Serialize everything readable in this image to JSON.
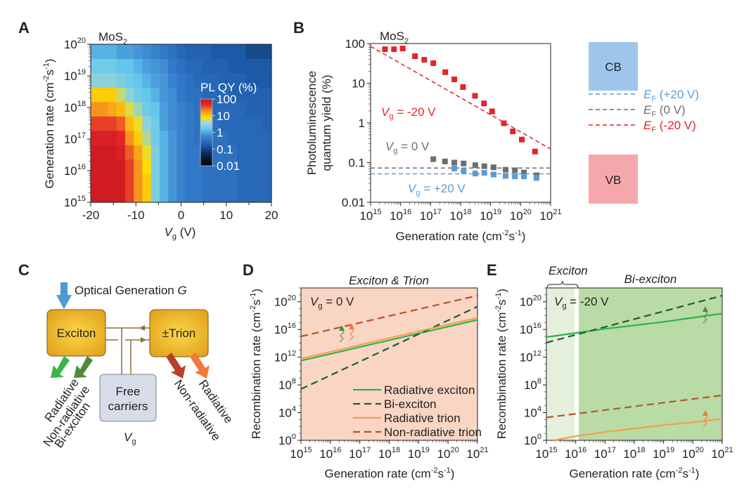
{
  "panels": {
    "A": {
      "label": "A",
      "material": "MoS",
      "material_sub": "2"
    },
    "B": {
      "label": "B",
      "material": "MoS",
      "material_sub": "2"
    },
    "C": {
      "label": "C"
    },
    "D": {
      "label": "D"
    },
    "E": {
      "label": "E"
    }
  },
  "chart_data": [
    {
      "id": "A",
      "type": "heatmap",
      "title": "MoS2",
      "xlabel": "Vg (V)",
      "ylabel": "Generation rate (cm-2s-1)",
      "x_axis": {
        "range": [
          -20,
          20
        ],
        "ticks": [
          "-20",
          "-10",
          "0",
          "10",
          "20"
        ],
        "tick_values": [
          -20,
          -10,
          0,
          10,
          20
        ]
      },
      "y_axis": {
        "scale": "log",
        "range_exp": [
          15,
          20
        ],
        "ticks_exp": [
          15,
          16,
          17,
          18,
          19,
          20
        ]
      },
      "colorbar": {
        "title": "PL QY (%)",
        "scale": "log",
        "ticks": [
          "100",
          "10",
          "1",
          "0.1",
          "0.01"
        ],
        "range_exp": [
          -2,
          2
        ]
      },
      "x": [
        -20,
        -18,
        -16,
        -14,
        -12,
        -10,
        -8,
        -6,
        -4,
        -2,
        0,
        2,
        4,
        6,
        8,
        10,
        12,
        14,
        16,
        18,
        20
      ],
      "y_exp": [
        15,
        15.5,
        16,
        16.5,
        17,
        17.5,
        18,
        18.5,
        19,
        19.5,
        20
      ],
      "log_values": [
        [
          1.9,
          1.9,
          1.9,
          1.9,
          1.6,
          1.3,
          1.0,
          0.2,
          -0.1,
          -0.3,
          -0.5,
          -0.6,
          -0.6,
          -0.7,
          -0.7,
          -0.7,
          -0.7,
          -0.8,
          -0.8,
          -0.8,
          -0.8
        ],
        [
          1.9,
          1.9,
          1.9,
          1.9,
          1.6,
          1.3,
          1.0,
          0.2,
          -0.1,
          -0.3,
          -0.5,
          -0.6,
          -0.6,
          -0.7,
          -0.7,
          -0.7,
          -0.7,
          -0.8,
          -0.8,
          -0.8,
          -0.8
        ],
        [
          1.9,
          1.9,
          1.9,
          1.9,
          1.6,
          1.3,
          0.9,
          0.2,
          -0.1,
          -0.3,
          -0.5,
          -0.6,
          -0.6,
          -0.7,
          -0.7,
          -0.7,
          -0.7,
          -0.8,
          -0.8,
          -0.8,
          -0.8
        ],
        [
          1.9,
          1.9,
          1.9,
          1.8,
          1.5,
          1.2,
          0.8,
          0.2,
          -0.1,
          -0.3,
          -0.5,
          -0.6,
          -0.6,
          -0.7,
          -0.7,
          -0.7,
          -0.7,
          -0.8,
          -0.8,
          -0.8,
          -0.8
        ],
        [
          1.8,
          1.8,
          1.8,
          1.7,
          1.3,
          1.0,
          0.5,
          0.1,
          -0.1,
          -0.3,
          -0.5,
          -0.6,
          -0.7,
          -0.7,
          -0.7,
          -0.7,
          -0.8,
          -0.8,
          -0.8,
          -0.8,
          -0.8
        ],
        [
          1.6,
          1.6,
          1.6,
          1.5,
          1.1,
          0.8,
          0.3,
          0.1,
          -0.2,
          -0.4,
          -0.5,
          -0.6,
          -0.7,
          -0.7,
          -0.7,
          -0.8,
          -0.8,
          -0.8,
          -0.8,
          -0.8,
          -0.9
        ],
        [
          1.3,
          1.3,
          1.2,
          1.1,
          0.7,
          0.4,
          0.1,
          0.0,
          -0.2,
          -0.4,
          -0.5,
          -0.6,
          -0.7,
          -0.7,
          -0.8,
          -0.8,
          -0.8,
          -0.8,
          -0.9,
          -0.9,
          -0.9
        ],
        [
          1.0,
          1.0,
          1.0,
          0.6,
          0.3,
          0.1,
          0.0,
          -0.1,
          -0.3,
          -0.4,
          -0.6,
          -0.7,
          -0.7,
          -0.8,
          -0.8,
          -0.8,
          -0.9,
          -0.9,
          -0.9,
          -0.9,
          -0.9
        ],
        [
          0.3,
          0.3,
          0.3,
          0.2,
          0.1,
          0.0,
          -0.1,
          -0.2,
          -0.3,
          -0.5,
          -0.6,
          -0.7,
          -0.8,
          -0.8,
          -0.8,
          -0.9,
          -0.9,
          -0.9,
          -1.0,
          -1.0,
          -1.0
        ],
        [
          0.1,
          0.1,
          0.1,
          0.0,
          0.0,
          -0.1,
          -0.2,
          -0.3,
          -0.4,
          -0.6,
          -0.7,
          -0.8,
          -0.8,
          -0.9,
          -0.9,
          -0.9,
          -1.0,
          -1.0,
          -1.0,
          -1.0,
          -1.0
        ],
        [
          -0.1,
          -0.1,
          -0.1,
          -0.2,
          -0.2,
          -0.3,
          -0.4,
          -0.5,
          -0.6,
          -0.7,
          -0.8,
          -0.9,
          -0.9,
          -0.9,
          -1.0,
          -1.0,
          -1.0,
          -1.0,
          -1.1,
          -1.1,
          -1.1
        ]
      ]
    },
    {
      "id": "B",
      "type": "scatter",
      "title": "MoS2",
      "xlabel": "Generation rate (cm-2s-1)",
      "ylabel_line1": "Photoluminescence",
      "ylabel_line2": "quantum yield (%)",
      "x_axis": {
        "scale": "log",
        "range_exp": [
          15,
          21
        ],
        "ticks_exp": [
          15,
          16,
          17,
          18,
          19,
          20,
          21
        ]
      },
      "y_axis": {
        "scale": "log",
        "range": [
          0.01,
          100
        ],
        "ticks": [
          "100",
          "10",
          "1",
          "0.1",
          "0.01"
        ],
        "tick_values": [
          100,
          10,
          1,
          0.1,
          0.01
        ]
      },
      "series": [
        {
          "name": "Vg = -20 V",
          "label_main": "V",
          "label_sub": "g",
          "label_rest": " = -20 V",
          "color": "#e3242b",
          "points": [
            [
              15.48,
              72
            ],
            [
              15.78,
              72
            ],
            [
              16.07,
              75
            ],
            [
              16.48,
              48
            ],
            [
              16.79,
              39
            ],
            [
              17.09,
              32
            ],
            [
              17.49,
              19
            ],
            [
              17.79,
              12.5
            ],
            [
              18.08,
              8
            ],
            [
              18.48,
              4.8
            ],
            [
              18.78,
              3.1
            ],
            [
              19.05,
              1.95
            ],
            [
              19.44,
              0.98
            ],
            [
              19.74,
              0.61
            ],
            [
              20.04,
              0.38
            ],
            [
              20.48,
              0.19
            ]
          ],
          "fit": {
            "style": "dashed",
            "from": [
              15,
              85
            ],
            "to": [
              21,
              0.22
            ]
          }
        },
        {
          "name": "Vg = 0 V",
          "label_main": "V",
          "label_sub": "g",
          "label_rest": " = 0 V",
          "color": "#6d6e70",
          "points": [
            [
              17.09,
              0.122
            ],
            [
              17.48,
              0.107
            ],
            [
              17.79,
              0.1
            ],
            [
              18.1,
              0.095
            ],
            [
              18.49,
              0.086
            ],
            [
              18.79,
              0.081
            ],
            [
              19.1,
              0.076
            ],
            [
              19.5,
              0.066
            ],
            [
              19.81,
              0.064
            ],
            [
              20.11,
              0.056
            ],
            [
              20.53,
              0.048
            ]
          ],
          "fit": {
            "style": "dashed",
            "level": 0.073
          }
        },
        {
          "name": "Vg = +20 V",
          "label_main": "V",
          "label_sub": "g",
          "label_rest": " = +20 V",
          "color": "#5b9bd5",
          "points": [
            [
              17.79,
              0.071
            ],
            [
              18.1,
              0.062
            ],
            [
              18.49,
              0.053
            ],
            [
              18.79,
              0.055
            ],
            [
              19.1,
              0.05
            ],
            [
              19.5,
              0.046
            ],
            [
              19.81,
              0.045
            ],
            [
              20.11,
              0.045
            ],
            [
              20.53,
              0.041
            ]
          ],
          "fit": {
            "style": "dashed",
            "level": 0.052
          }
        }
      ]
    },
    {
      "id": "D",
      "type": "line",
      "title": "Exciton & Trion",
      "annotation_main": "V",
      "annotation_sub": "g",
      "annotation_rest": " = 0 V",
      "xlabel": "Generation rate (cm-2s-1)",
      "ylabel": "Recombination rate (cm-2s-1)",
      "background": "#f9d5c4",
      "x_axis": {
        "scale": "log",
        "range_exp": [
          15,
          21
        ],
        "ticks_exp": [
          15,
          16,
          17,
          18,
          19,
          20,
          21
        ]
      },
      "y_axis": {
        "scale": "log",
        "range_exp": [
          0,
          22
        ],
        "ticks_exp": [
          0,
          4,
          8,
          12,
          16,
          20
        ]
      },
      "series": [
        {
          "name": "Radiative exciton",
          "style": "solid",
          "color": "#2db34a",
          "log_x": [
            15,
            21
          ],
          "log_y": [
            11.5,
            17.4
          ]
        },
        {
          "name": "Bi-exciton",
          "style": "dashed",
          "color": "#1e5e32",
          "log_x": [
            15,
            21
          ],
          "log_y": [
            7.4,
            19.3
          ]
        },
        {
          "name": "Radiative trion",
          "style": "solid",
          "color": "#f5a04a",
          "log_x": [
            15,
            21
          ],
          "log_y": [
            11.8,
            17.7
          ]
        },
        {
          "name": "Non-radiative trion",
          "style": "dashed",
          "color": "#b4562a",
          "log_x": [
            15,
            21
          ],
          "log_y": [
            15.0,
            20.9
          ]
        }
      ],
      "legend": {
        "position": "bottom-right"
      }
    },
    {
      "id": "E",
      "type": "line",
      "title": "Bi-exciton",
      "region_label": "Exciton",
      "annotation_main": "V",
      "annotation_sub": "g",
      "annotation_rest": " = -20 V",
      "xlabel": "Generation rate (cm-2s-1)",
      "ylabel": "Recombination rate (cm-2s-1)",
      "background": "#b9dba5",
      "exciton_region_background": "#e4f0dc",
      "exciton_region_log_x": [
        15,
        16
      ],
      "x_axis": {
        "scale": "log",
        "range_exp": [
          15,
          21
        ],
        "ticks_exp": [
          15,
          16,
          17,
          18,
          19,
          20,
          21
        ]
      },
      "y_axis": {
        "scale": "log",
        "range_exp": [
          0,
          22
        ],
        "ticks_exp": [
          0,
          4,
          8,
          12,
          16,
          20
        ]
      },
      "series": [
        {
          "name": "Radiative exciton",
          "style": "solid",
          "color": "#2db34a",
          "log_x": [
            15,
            16,
            17,
            18,
            19,
            20,
            21
          ],
          "log_y": [
            14.9,
            15.5,
            16.1,
            16.6,
            17.1,
            17.7,
            18.3
          ]
        },
        {
          "name": "Bi-exciton",
          "style": "dashed",
          "color": "#1e5e32",
          "log_x": [
            15,
            21
          ],
          "log_y": [
            14.1,
            20.9
          ]
        },
        {
          "name": "Radiative trion",
          "style": "solid",
          "color": "#f5a04a",
          "log_x": [
            15.25,
            16,
            17,
            18,
            19,
            20,
            21
          ],
          "log_y": [
            0,
            0.6,
            1.2,
            1.7,
            2.2,
            2.6,
            3.1
          ]
        },
        {
          "name": "Non-radiative trion",
          "style": "dashed",
          "color": "#b4562a",
          "log_x": [
            15,
            21
          ],
          "log_y": [
            3.3,
            6.5
          ]
        }
      ]
    }
  ],
  "band_diagram": {
    "cb_label": "CB",
    "vb_label": "VB",
    "cb_color": "#9ec6ea",
    "vb_color": "#f4a8ac",
    "fermi_levels": [
      {
        "main": "E",
        "sub": "F",
        "rest": " (+20 V)",
        "color": "#5b9bd5"
      },
      {
        "main": "E",
        "sub": "F",
        "rest": " (0 V)",
        "color": "#6d6e70"
      },
      {
        "main": "E",
        "sub": "F",
        "rest": " (-20 V)",
        "color": "#e3242b"
      }
    ]
  },
  "diagram_C": {
    "optical_generation": "Optical Generation ",
    "optical_generation_var": "G",
    "exciton": "Exciton",
    "trion": "±Trion",
    "free_carriers_line1": "Free",
    "free_carriers_line2": "carriers",
    "gate_main": "V",
    "gate_sub": "g",
    "exciton_outputs": [
      "Radiative",
      "Non-radiative",
      "Bi-exciton"
    ],
    "trion_outputs": [
      "Non-radiative",
      "Radiative"
    ],
    "colors": {
      "box": "#f0b323",
      "optical_arrow": "#4a9ad6",
      "exciton_radiative": "#3cb54a",
      "exciton_nonradiative": "#4f8a3a",
      "trion_nonradiative": "#b8412a",
      "trion_radiative": "#f07a3a",
      "free_carriers_box": "#d7dde8",
      "connector": "#8a7033"
    }
  }
}
